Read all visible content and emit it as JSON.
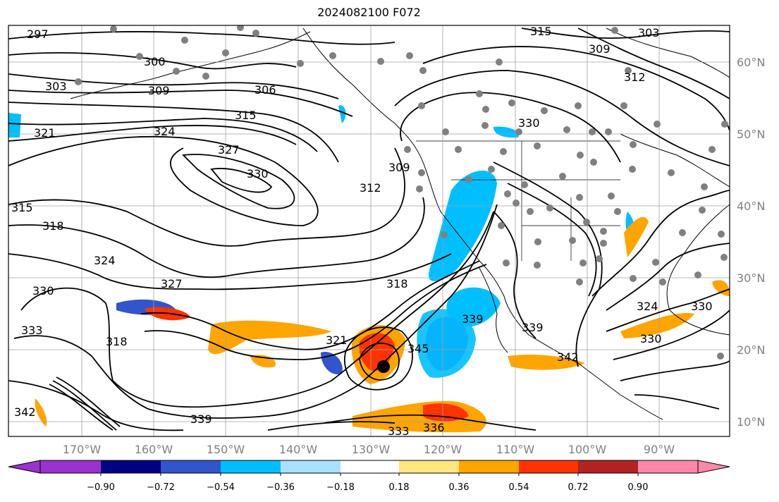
{
  "title": "2024082100 F072",
  "map": {
    "lon_labels": [
      "170°W",
      "160°W",
      "150°W",
      "140°W",
      "130°W",
      "120°W",
      "110°W",
      "100°W",
      "90°W"
    ],
    "lat_labels": [
      "60°N",
      "50°N",
      "40°N",
      "30°N",
      "20°N",
      "10°N"
    ],
    "contour_labels": [
      "297",
      "300",
      "303",
      "309",
      "306",
      "315",
      "321",
      "324",
      "327",
      "330",
      "312",
      "309",
      "315",
      "318",
      "324",
      "330",
      "327",
      "333",
      "318",
      "339",
      "336",
      "333",
      "342",
      "318",
      "321",
      "339",
      "345",
      "339",
      "342",
      "324",
      "330",
      "330",
      "303",
      "309",
      "312",
      "330",
      "315"
    ],
    "colors": {
      "contour": "#000000",
      "grid": "#a0a0a0",
      "coast": "#000000",
      "station_dot": "#808080",
      "storm_center": "#000000"
    }
  },
  "colorbar": {
    "ticks": [
      "−0.90",
      "−0.72",
      "−0.54",
      "−0.36",
      "−0.18",
      "0.18",
      "0.36",
      "0.54",
      "0.72",
      "0.90"
    ],
    "colors": [
      "#9933cc",
      "#000080",
      "#3355cc",
      "#00bfff",
      "#aae0ff",
      "#ffffff",
      "#ffe680",
      "#ffa500",
      "#ff3300",
      "#b22222",
      "#ff88aa"
    ]
  }
}
